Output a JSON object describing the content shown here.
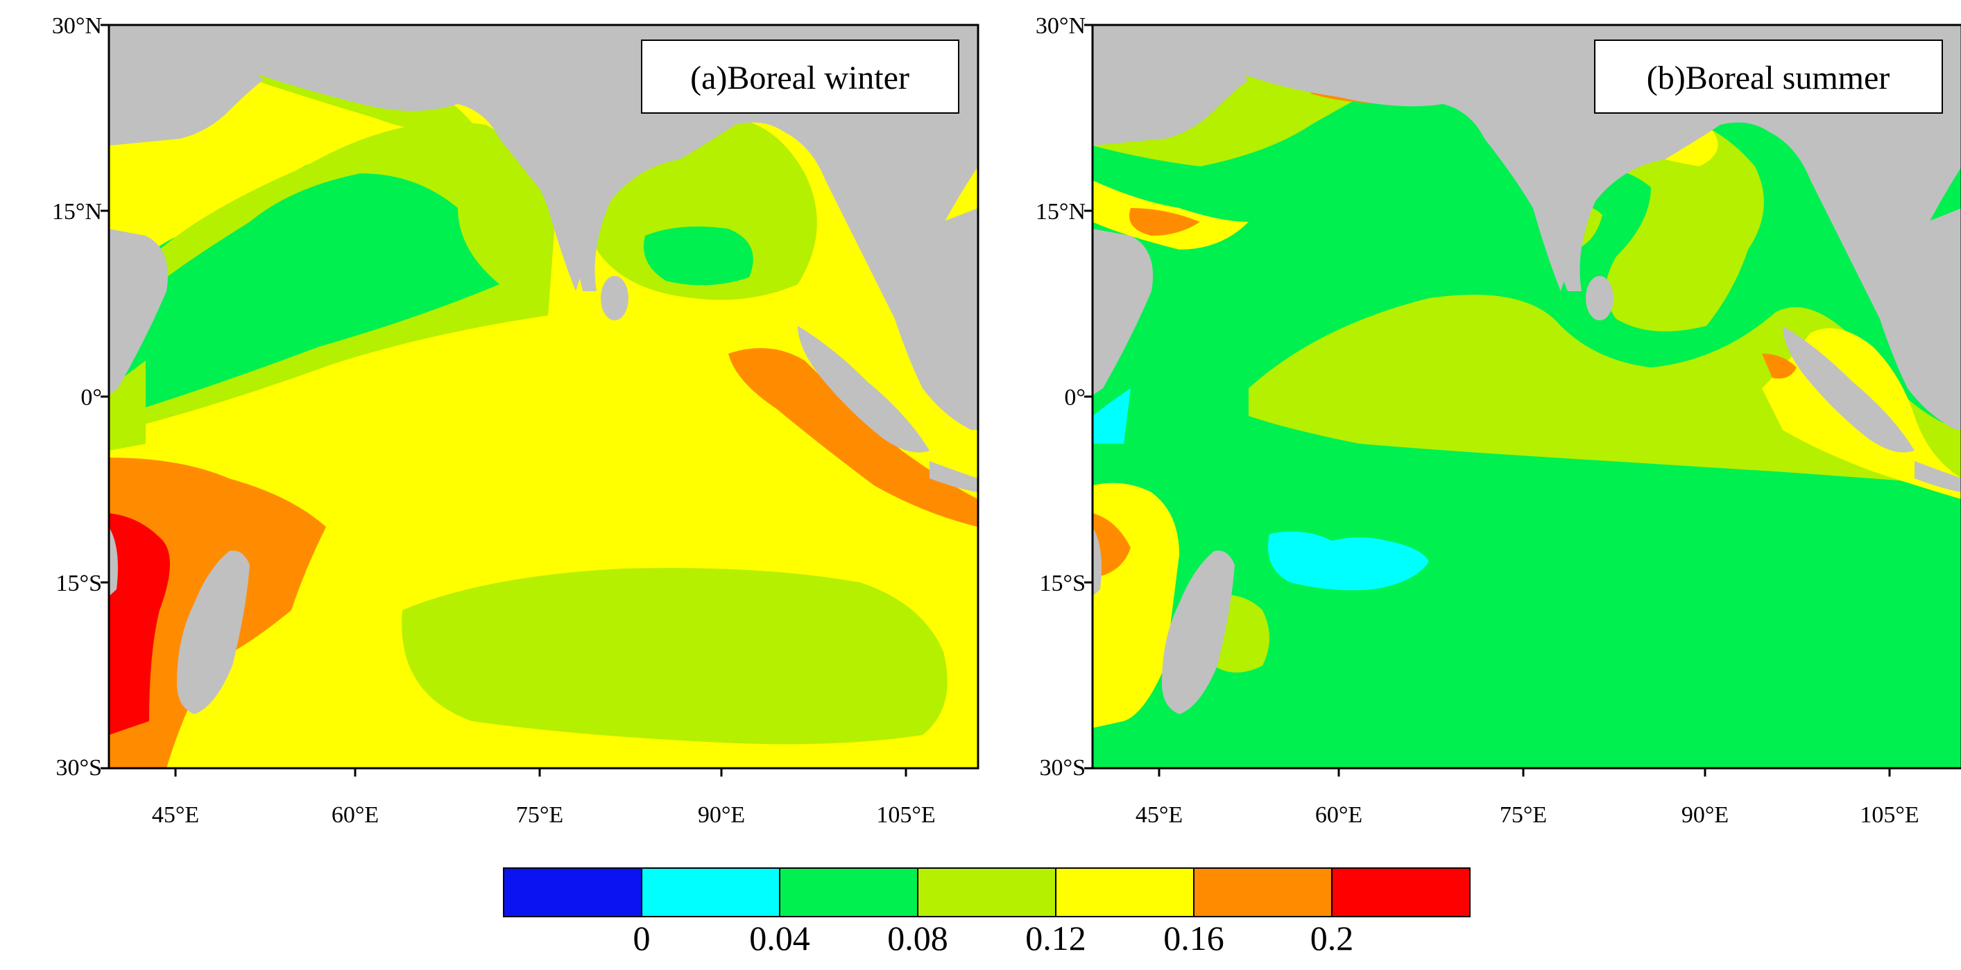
{
  "panels": [
    {
      "id": "a",
      "title": "(a)Boreal winter",
      "lat_labels": [
        "30°N",
        "15°N",
        "0°",
        "15°S",
        "30°S"
      ],
      "lon_labels": [
        "45°E",
        "60°E",
        "75°E",
        "90°E",
        "105°E"
      ]
    },
    {
      "id": "b",
      "title": "(b)Boreal summer",
      "lat_labels": [
        "30°N",
        "15°N",
        "0°",
        "15°S",
        "30°S"
      ],
      "lon_labels": [
        "45°E",
        "60°E",
        "75°E",
        "90°E",
        "105°E"
      ]
    }
  ],
  "colorbar": {
    "colors": [
      "#0a14f0",
      "#00ffff",
      "#00f050",
      "#b4f000",
      "#ffff00",
      "#ff8c00",
      "#ff0000"
    ],
    "tick_labels": [
      "0",
      "0.04",
      "0.08",
      "0.12",
      "0.16",
      "0.2"
    ]
  },
  "map_colors": {
    "land": "#c0c0c0",
    "frame": "#000000"
  }
}
